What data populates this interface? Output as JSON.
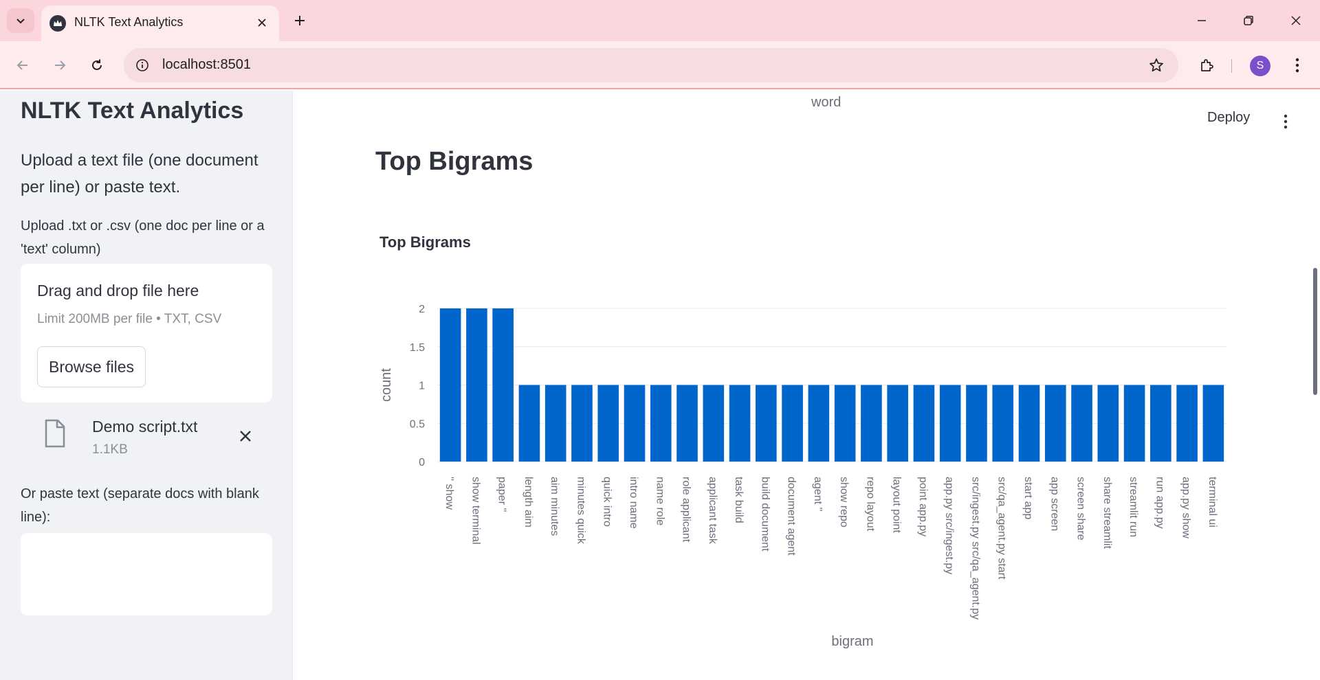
{
  "browser": {
    "tab_title": "NLTK Text Analytics",
    "url": "localhost:8501",
    "profile_initial": "S"
  },
  "sidebar": {
    "title": "NLTK Text Analytics",
    "description": "Upload a text file (one document per line) or paste text.",
    "upload_label": "Upload .txt or .csv (one doc per line or a 'text' column)",
    "dropzone_title": "Drag and drop file here",
    "dropzone_limit": "Limit 200MB per file • TXT, CSV",
    "browse_label": "Browse files",
    "file_name": "Demo script.txt",
    "file_size": "1.1KB",
    "paste_label": "Or paste text (separate docs with blank line):"
  },
  "main": {
    "previous_axis_label": "word",
    "deploy_label": "Deploy",
    "section_title": "Top Bigrams"
  },
  "colors": {
    "bar": "#0066cc",
    "grid": "#e6e8ee",
    "axis_text": "#6b6f7b"
  },
  "chart_data": {
    "type": "bar",
    "title": "Top Bigrams",
    "xlabel": "bigram",
    "ylabel": "count",
    "ylim": [
      0,
      2
    ],
    "yticks": [
      "0",
      "0.5",
      "1",
      "1.5",
      "2"
    ],
    "categories": [
      "'' show",
      "show terminal",
      "paper ''",
      "length aim",
      "aim minutes",
      "minutes quick",
      "quick intro",
      "intro name",
      "name role",
      "role applicant",
      "applicant task",
      "task build",
      "build document",
      "document agent",
      "agent ''",
      "show repo",
      "repo layout",
      "layout point",
      "point app.py",
      "app.py src/ingest.py",
      "src/ingest.py src/qa_agent.py",
      "src/qa_agent.py start",
      "start app",
      "app screen",
      "screen share",
      "share streamlit",
      "streamlit run",
      "run app.py",
      "app.py show",
      "terminal ui"
    ],
    "values": [
      2,
      2,
      2,
      1,
      1,
      1,
      1,
      1,
      1,
      1,
      1,
      1,
      1,
      1,
      1,
      1,
      1,
      1,
      1,
      1,
      1,
      1,
      1,
      1,
      1,
      1,
      1,
      1,
      1,
      1
    ],
    "grid": true,
    "legend": "none"
  }
}
